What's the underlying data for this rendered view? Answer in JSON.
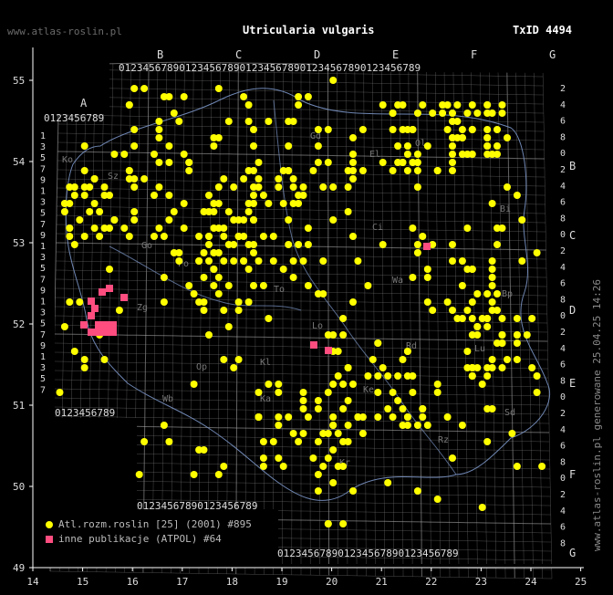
{
  "header": {
    "site": "www.atlas-roslin.pl",
    "title": "Utricularia vulgaris",
    "taxid": "TxID 4494"
  },
  "legend": {
    "items": [
      {
        "label": "Atl.rozm.roslin [25] (2001) #895",
        "color": "#ffff00",
        "shape": "circle"
      },
      {
        "label": "inne publikacje (ATPOL) #64",
        "color": "#ff4d80",
        "shape": "square"
      }
    ]
  },
  "side_text": "www.atlas-roslin.pl generowane 25.04.25 14:26",
  "map": {
    "lon_ticks": [
      "14",
      "15",
      "16",
      "17",
      "18",
      "19",
      "20",
      "21",
      "22",
      "23",
      "24",
      "25"
    ],
    "lat_ticks": [
      "49",
      "50",
      "51",
      "52",
      "53",
      "54",
      "55"
    ],
    "atpol_top_letters": [
      "B",
      "C",
      "D",
      "E",
      "F",
      "G"
    ],
    "atpol_left_letter": "A",
    "atpol_right_letters": [
      "B",
      "C",
      "D",
      "E",
      "F",
      "G"
    ],
    "digits": "0123456789",
    "left_digits": [
      "1",
      "3",
      "5",
      "7",
      "9",
      "1",
      "3",
      "5",
      "7",
      "9",
      "1",
      "3",
      "5",
      "7",
      "9",
      "1",
      "3",
      "5",
      "7",
      "9",
      "1",
      "3",
      "5",
      "7"
    ],
    "right_digits": [
      "2",
      "4",
      "6",
      "8",
      "0",
      "2",
      "4",
      "6",
      "8",
      "0",
      "2",
      "4",
      "6",
      "8",
      "0",
      "2",
      "4",
      "6",
      "8",
      "0",
      "2",
      "4",
      "6",
      "8",
      "0",
      "2",
      "4",
      "6",
      "8"
    ],
    "region_labels": [
      "Ko",
      "Sz",
      "Gd",
      "El",
      "Go",
      "Bi",
      "Ci",
      "Zg",
      "Po",
      "To",
      "Ol",
      "Bp",
      "Lo",
      "Wa",
      "Lu",
      "Wb",
      "Op",
      "Ka",
      "Kr",
      "Rz",
      "Kl",
      "Rd",
      "Ke",
      "Sd"
    ],
    "colors": {
      "background": "#000000",
      "grid": "#8a8a8a",
      "frame": "#ffffff",
      "record": "#ffff00",
      "other": "#ff4d80",
      "border": "#7a94c4"
    }
  }
}
